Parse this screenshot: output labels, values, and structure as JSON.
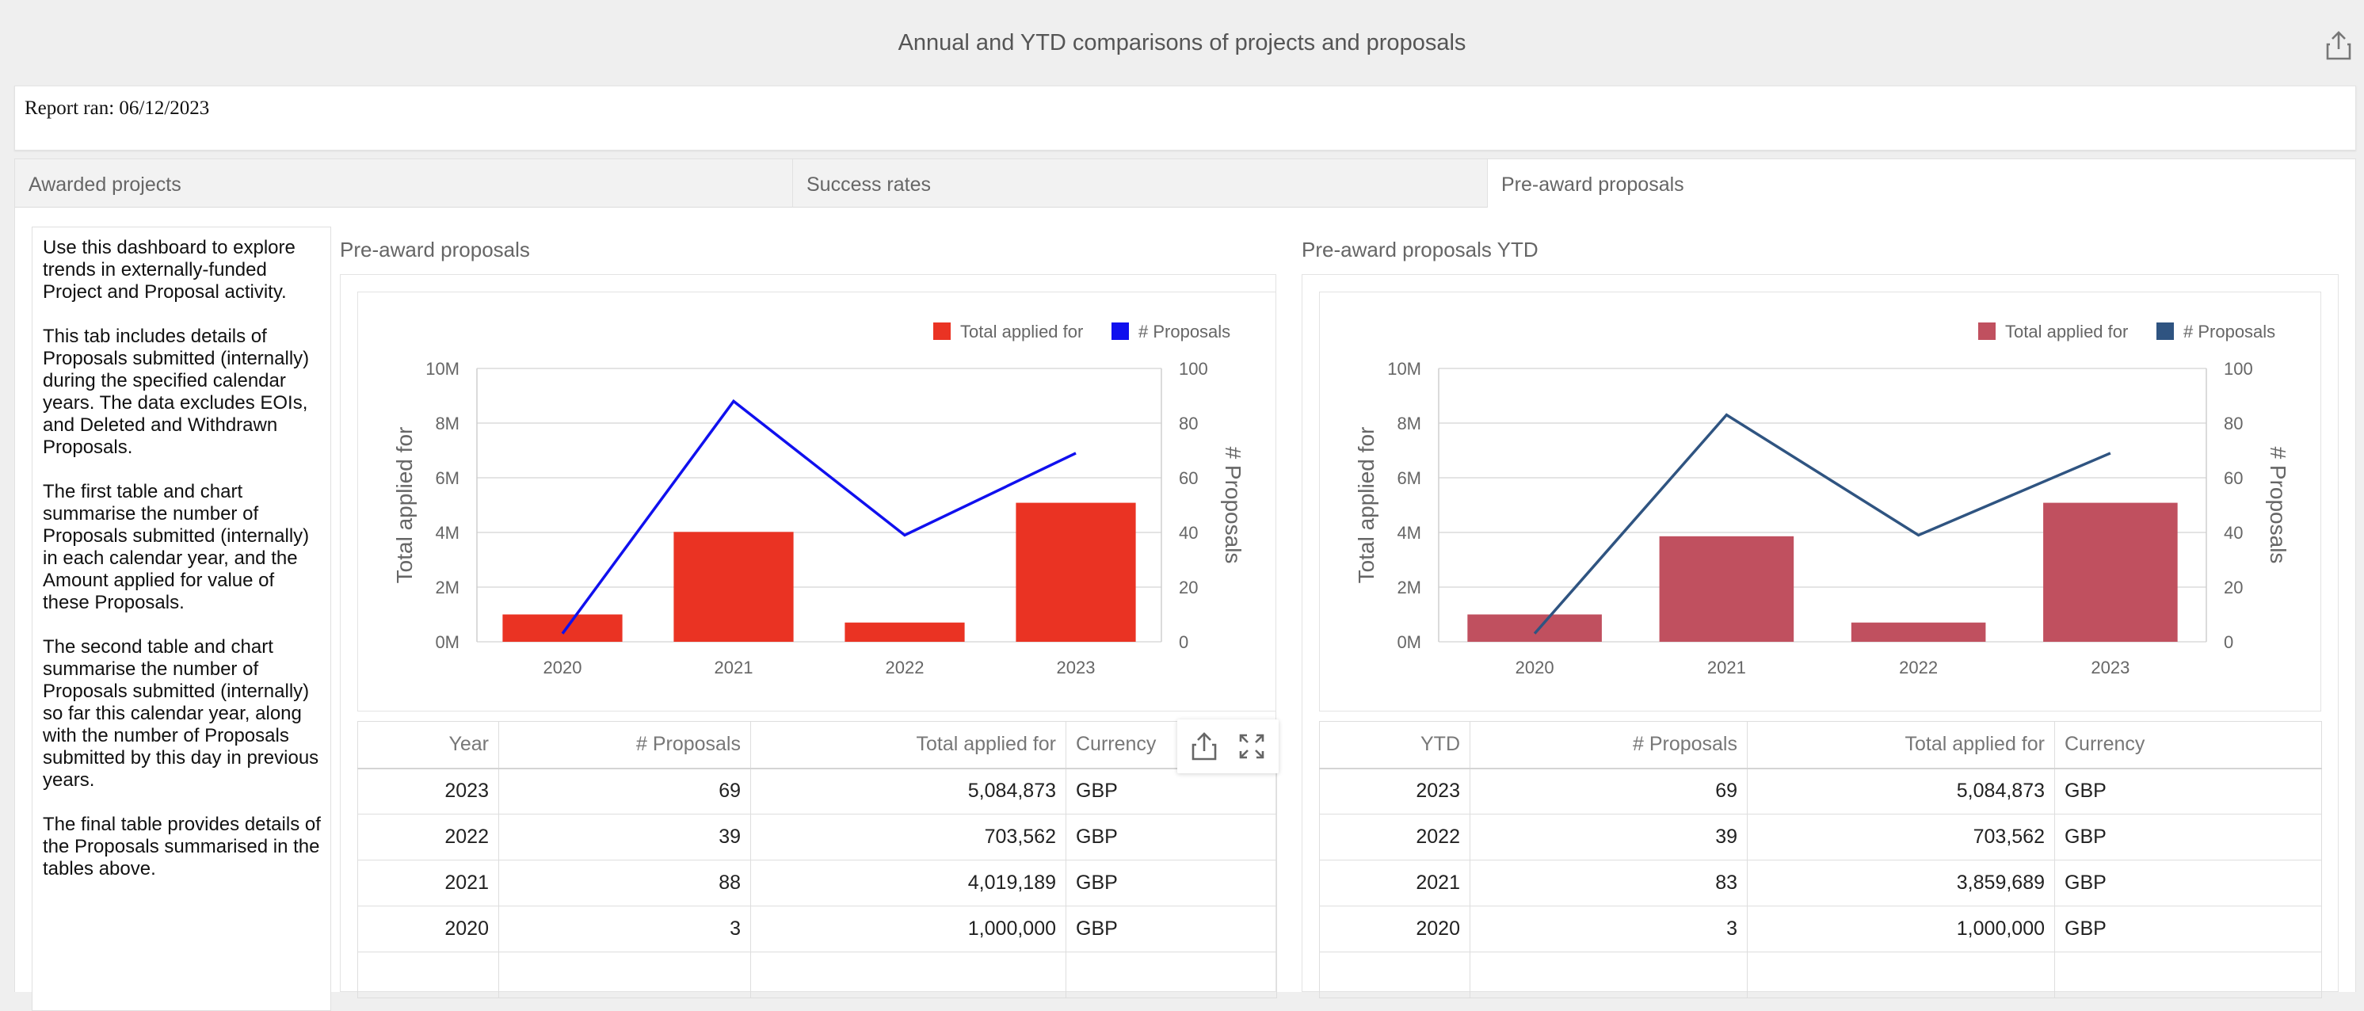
{
  "header": {
    "title": "Annual and YTD comparisons of projects and proposals",
    "share_icon": "share-icon",
    "report_ran": "Report ran: 06/12/2023"
  },
  "tabs": [
    {
      "label": "Awarded projects",
      "active": false
    },
    {
      "label": "Success rates",
      "active": false
    },
    {
      "label": "Pre-award proposals",
      "active": true
    }
  ],
  "description": [
    "Use this dashboard to explore trends in externally-funded Project and Proposal activity.",
    "This tab includes details of Proposals submitted (internally) during the specified calendar years. The data excludes EOIs, and Deleted and Withdrawn Proposals.",
    "The first table and chart summarise the number of Proposals submitted (internally) in each calendar year, and the Amount applied for value of these Proposals.",
    "The second table and chart summarise the number of Proposals submitted (internally) so far this calendar year, along with the number of Proposals submitted by this day in previous years.",
    "The final table provides details of the Proposals summarised in the tables above."
  ],
  "panels": [
    {
      "title": "Pre-award proposals",
      "toolbar": {
        "share_icon": "share-icon",
        "expand_icon": "expand-icon"
      },
      "table": {
        "headers": [
          "Year",
          "# Proposals",
          "Total applied for",
          "Currency"
        ],
        "rows": [
          [
            "2023",
            "69",
            "5,084,873",
            "GBP"
          ],
          [
            "2022",
            "39",
            "703,562",
            "GBP"
          ],
          [
            "2021",
            "88",
            "4,019,189",
            "GBP"
          ],
          [
            "2020",
            "3",
            "1,000,000",
            "GBP"
          ]
        ]
      }
    },
    {
      "title": "Pre-award proposals YTD",
      "table": {
        "headers": [
          "YTD",
          "# Proposals",
          "Total applied for",
          "Currency"
        ],
        "rows": [
          [
            "2023",
            "69",
            "5,084,873",
            "GBP"
          ],
          [
            "2022",
            "39",
            "703,562",
            "GBP"
          ],
          [
            "2021",
            "83",
            "3,859,689",
            "GBP"
          ],
          [
            "2020",
            "3",
            "1,000,000",
            "GBP"
          ]
        ]
      }
    }
  ],
  "chart_data": [
    {
      "type": "bar",
      "categories": [
        "2020",
        "2021",
        "2022",
        "2023"
      ],
      "series": [
        {
          "name": "Total applied for",
          "kind": "bar",
          "axis": "left",
          "color": "#ea3323",
          "values": [
            1000000,
            4019189,
            703562,
            5084873
          ]
        },
        {
          "name": "# Proposals",
          "kind": "line",
          "axis": "right",
          "color": "#1010ee",
          "values": [
            3,
            88,
            39,
            69
          ]
        }
      ],
      "ylabel": "Total applied for",
      "y2label": "# Proposals",
      "ylim": [
        0,
        10000000
      ],
      "y2lim": [
        0,
        100
      ],
      "yticks": [
        "0M",
        "2M",
        "4M",
        "6M",
        "8M",
        "10M"
      ],
      "y2ticks": [
        "0",
        "20",
        "40",
        "60",
        "80",
        "100"
      ],
      "grid": true,
      "legend": "top-right"
    },
    {
      "type": "bar",
      "categories": [
        "2020",
        "2021",
        "2022",
        "2023"
      ],
      "series": [
        {
          "name": "Total applied for",
          "kind": "bar",
          "axis": "left",
          "color": "#c0505f",
          "values": [
            1000000,
            3859689,
            703562,
            5084873
          ]
        },
        {
          "name": "# Proposals",
          "kind": "line",
          "axis": "right",
          "color": "#2f5481",
          "values": [
            3,
            83,
            39,
            69
          ]
        }
      ],
      "ylabel": "Total applied for",
      "y2label": "# Proposals",
      "ylim": [
        0,
        10000000
      ],
      "y2lim": [
        0,
        100
      ],
      "yticks": [
        "0M",
        "2M",
        "4M",
        "6M",
        "8M",
        "10M"
      ],
      "y2ticks": [
        "0",
        "20",
        "40",
        "60",
        "80",
        "100"
      ],
      "grid": true,
      "legend": "top-right"
    }
  ]
}
